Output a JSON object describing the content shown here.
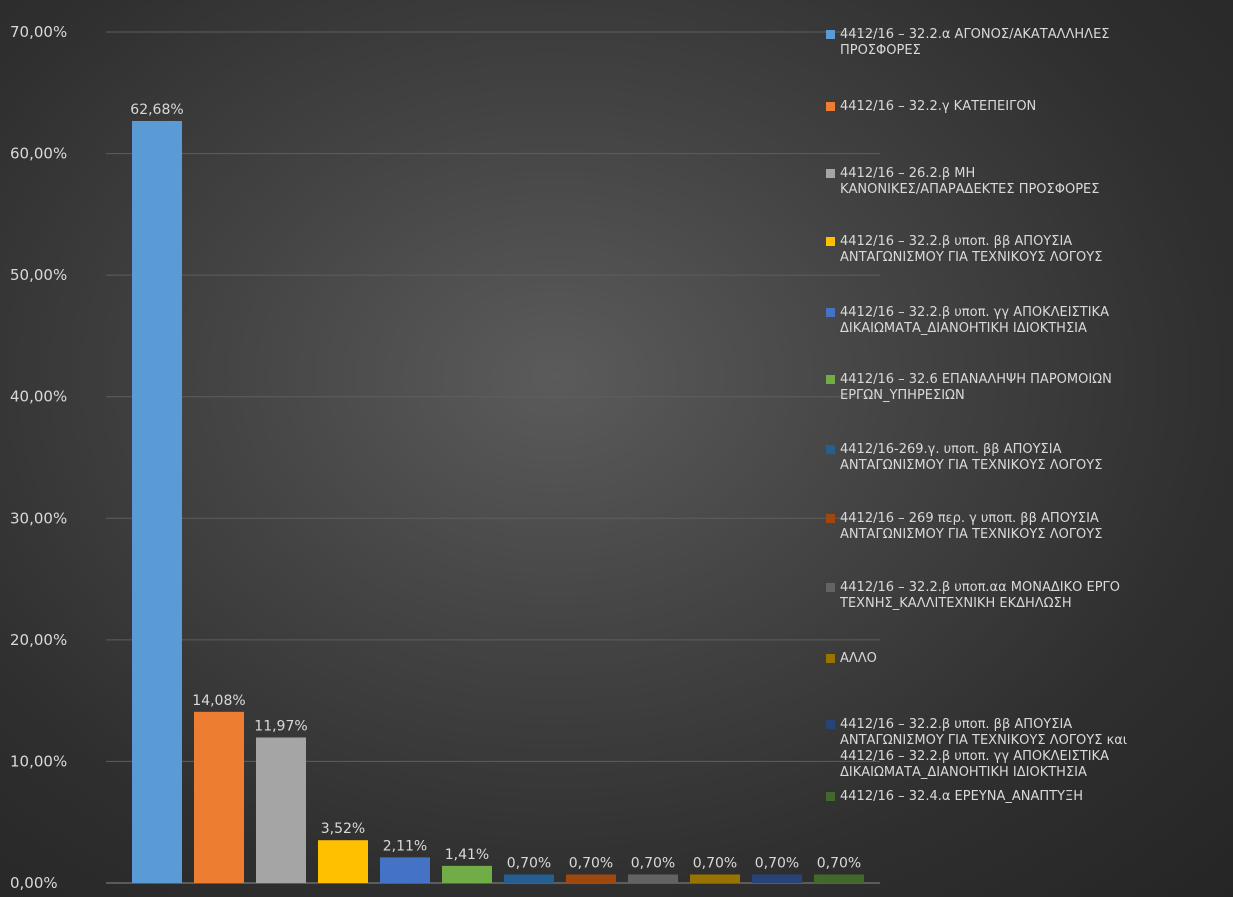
{
  "chart_data": {
    "type": "bar",
    "ylim": [
      0,
      70
    ],
    "y_ticks": [
      "0,00%",
      "10,00%",
      "20,00%",
      "30,00%",
      "40,00%",
      "50,00%",
      "60,00%",
      "70,00%"
    ],
    "grid": true,
    "legend_position": "right",
    "data_labels": [
      "62,68%",
      "14,08%",
      "11,97%",
      "3,52%",
      "2,11%",
      "1,41%",
      "0,70%",
      "0,70%",
      "0,70%",
      "0,70%",
      "0,70%",
      "0,70%"
    ],
    "series": [
      {
        "name": "4412/16 – 32.2.α ΑΓΟΝΟΣ/ΑΚΑΤΑΛΛΗΛΕΣ ΠΡΟΣΦΟΡΕΣ",
        "value": 62.68,
        "color": "#5b9bd5"
      },
      {
        "name": "4412/16 – 32.2.γ ΚΑΤΕΠΕΙΓΟΝ",
        "value": 14.08,
        "color": "#ed7d31"
      },
      {
        "name": "4412/16 – 26.2.β ΜΗ ΚΑΝΟΝΙΚΕΣ/ΑΠΑΡΑΔΕΚΤΕΣ ΠΡΟΣΦΟΡΕΣ",
        "value": 11.97,
        "color": "#a5a5a5"
      },
      {
        "name": "4412/16 – 32.2.β υποπ. ββ ΑΠΟΥΣΙΑ ΑΝΤΑΓΩΝΙΣΜΟΥ ΓΙΑ ΤΕΧΝΙΚΟΥΣ ΛΟΓΟΥΣ",
        "value": 3.52,
        "color": "#ffc000"
      },
      {
        "name": "4412/16 – 32.2.β υποπ. γγ ΑΠΟΚΛΕΙΣΤΙΚΑ ΔΙΚΑΙΩΜΑΤΑ_ΔΙΑΝΟΗΤΙΚΗ ΙΔΙΟΚΤΗΣΙΑ",
        "value": 2.11,
        "color": "#4472c4"
      },
      {
        "name": "4412/16 – 32.6 ΕΠΑΝΑΛΗΨΗ ΠΑΡΟΜΟΙΩΝ ΕΡΓΩΝ_ΥΠΗΡΕΣΙΩΝ",
        "value": 1.41,
        "color": "#70ad47"
      },
      {
        "name": "4412/16-269.γ. υποπ. ββ ΑΠΟΥΣΙΑ ΑΝΤΑΓΩΝΙΣΜΟΥ ΓΙΑ ΤΕΧΝΙΚΟΥΣ ΛΟΓΟΥΣ",
        "value": 0.7,
        "color": "#255e91"
      },
      {
        "name": "4412/16 – 269 περ. γ υποπ. ββ ΑΠΟΥΣΙΑ ΑΝΤΑΓΩΝΙΣΜΟΥ ΓΙΑ ΤΕΧΝΙΚΟΥΣ ΛΟΓΟΥΣ",
        "value": 0.7,
        "color": "#9e480e"
      },
      {
        "name": "4412/16 – 32.2.β υποπ.αα ΜΟΝΑΔΙΚΟ ΕΡΓΟ ΤΕΧΝΗΣ_ΚΑΛΛΙΤΕΧΝΙΚΗ ΕΚΔΗΛΩΣΗ",
        "value": 0.7,
        "color": "#636363"
      },
      {
        "name": "ΑΛΛΟ",
        "value": 0.7,
        "color": "#997300"
      },
      {
        "name": "4412/16 – 32.2.β υποπ. ββ ΑΠΟΥΣΙΑ ΑΝΤΑΓΩΝΙΣΜΟΥ ΓΙΑ ΤΕΧΝΙΚΟΥΣ ΛΟΓΟΥΣ και 4412/16 – 32.2.β υποπ. γγ ΑΠΟΚΛΕΙΣΤΙΚΑ ΔΙΚΑΙΩΜΑΤΑ_ΔΙΑΝΟΗΤΙΚΗ ΙΔΙΟΚΤΗΣΙΑ",
        "value": 0.7,
        "color": "#264478"
      },
      {
        "name": "4412/16 – 32.4.α ΕΡΕΥΝΑ_ΑΝΑΠΤΥΞΗ",
        "value": 0.7,
        "color": "#43682b"
      }
    ]
  },
  "legend_lines": [
    [
      "4412/16 – 32.2.α ΑΓΟΝΟΣ/ΑΚΑΤΑΛΛΗΛΕΣ",
      "ΠΡΟΣΦΟΡΕΣ"
    ],
    [
      "4412/16 – 32.2.γ ΚΑΤΕΠΕΙΓΟΝ"
    ],
    [
      "4412/16 – 26.2.β ΜΗ",
      "ΚΑΝΟΝΙΚΕΣ/ΑΠΑΡΑΔΕΚΤΕΣ ΠΡΟΣΦΟΡΕΣ"
    ],
    [
      "4412/16 – 32.2.β υποπ. ββ ΑΠΟΥΣΙΑ",
      "ΑΝΤΑΓΩΝΙΣΜΟΥ ΓΙΑ ΤΕΧΝΙΚΟΥΣ ΛΟΓΟΥΣ"
    ],
    [
      "4412/16 – 32.2.β υποπ. γγ ΑΠΟΚΛΕΙΣΤΙΚΑ",
      "ΔΙΚΑΙΩΜΑΤΑ_ΔΙΑΝΟΗΤΙΚΗ ΙΔΙΟΚΤΗΣΙΑ"
    ],
    [
      "4412/16 – 32.6 ΕΠΑΝΑΛΗΨΗ ΠΑΡΟΜΟΙΩΝ",
      "ΕΡΓΩΝ_ΥΠΗΡΕΣΙΩΝ"
    ],
    [
      "4412/16-269.γ. υποπ. ββ ΑΠΟΥΣΙΑ",
      "ΑΝΤΑΓΩΝΙΣΜΟΥ ΓΙΑ ΤΕΧΝΙΚΟΥΣ ΛΟΓΟΥΣ"
    ],
    [
      "4412/16 – 269 περ. γ υποπ. ββ ΑΠΟΥΣΙΑ",
      "ΑΝΤΑΓΩΝΙΣΜΟΥ ΓΙΑ ΤΕΧΝΙΚΟΥΣ ΛΟΓΟΥΣ"
    ],
    [
      "4412/16 – 32.2.β υποπ.αα ΜΟΝΑΔΙΚΟ ΕΡΓΟ",
      "ΤΕΧΝΗΣ_ΚΑΛΛΙΤΕΧΝΙΚΗ ΕΚΔΗΛΩΣΗ"
    ],
    [
      "ΑΛΛΟ"
    ],
    [
      "4412/16 – 32.2.β υποπ. ββ ΑΠΟΥΣΙΑ",
      "ΑΝΤΑΓΩΝΙΣΜΟΥ ΓΙΑ ΤΕΧΝΙΚΟΥΣ ΛΟΓΟΥΣ και",
      "4412/16 – 32.2.β υποπ. γγ ΑΠΟΚΛΕΙΣΤΙΚΑ",
      "ΔΙΚΑΙΩΜΑΤΑ_ΔΙΑΝΟΗΤΙΚΗ ΙΔΙΟΚΤΗΣΙΑ"
    ],
    [
      "4412/16 – 32.4.α ΕΡΕΥΝΑ_ΑΝΑΠΤΥΞΗ"
    ]
  ]
}
